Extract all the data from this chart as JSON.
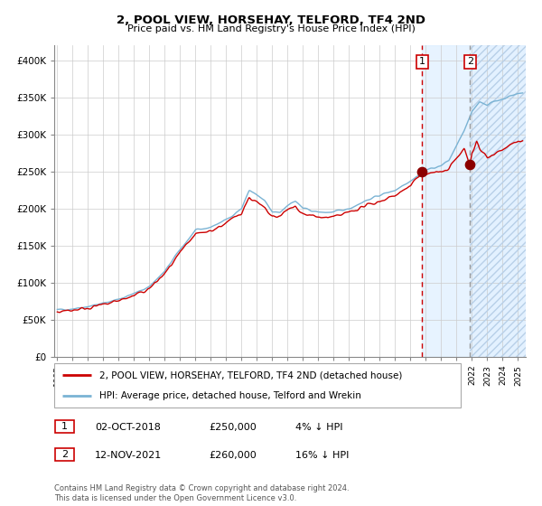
{
  "title": "2, POOL VIEW, HORSEHAY, TELFORD, TF4 2ND",
  "subtitle": "Price paid vs. HM Land Registry's House Price Index (HPI)",
  "legend_line1": "2, POOL VIEW, HORSEHAY, TELFORD, TF4 2ND (detached house)",
  "legend_line2": "HPI: Average price, detached house, Telford and Wrekin",
  "footnote": "Contains HM Land Registry data © Crown copyright and database right 2024.\nThis data is licensed under the Open Government Licence v3.0.",
  "sale1_date": "02-OCT-2018",
  "sale1_price": 250000,
  "sale1_pct": "4%",
  "sale2_date": "12-NOV-2021",
  "sale2_price": 260000,
  "sale2_pct": "16%",
  "hpi_color": "#7ab3d4",
  "price_color": "#cc0000",
  "dot_color": "#8b0000",
  "bg_highlight_color": "#ddeeff",
  "sale1_x": 2018.75,
  "sale2_x": 2021.87,
  "ylim": [
    0,
    420000
  ],
  "xlim_start": 1994.8,
  "xlim_end": 2025.5,
  "hpi_anchors_x": [
    1995.0,
    1996.0,
    1997.0,
    1998.0,
    1999.0,
    2000.0,
    2001.0,
    2002.0,
    2003.0,
    2004.0,
    2005.0,
    2006.0,
    2007.0,
    2007.5,
    2008.0,
    2008.5,
    2009.0,
    2009.5,
    2010.0,
    2010.5,
    2011.0,
    2012.0,
    2013.0,
    2014.0,
    2015.0,
    2016.0,
    2017.0,
    2018.0,
    2018.75,
    2019.0,
    2020.0,
    2020.5,
    2021.0,
    2021.5,
    2022.0,
    2022.5,
    2023.0,
    2023.5,
    2024.0,
    2024.5,
    2025.0,
    2025.3
  ],
  "hpi_anchors_y": [
    63000,
    65000,
    68000,
    72000,
    78000,
    85000,
    95000,
    115000,
    145000,
    170000,
    175000,
    185000,
    200000,
    225000,
    218000,
    210000,
    195000,
    195000,
    205000,
    210000,
    200000,
    195000,
    195000,
    200000,
    210000,
    218000,
    225000,
    238000,
    248000,
    252000,
    258000,
    265000,
    285000,
    305000,
    330000,
    345000,
    340000,
    345000,
    348000,
    352000,
    355000,
    356000
  ],
  "price_anchors_x": [
    1995.0,
    1996.0,
    1997.0,
    1998.0,
    1999.0,
    2000.0,
    2001.0,
    2002.0,
    2003.0,
    2004.0,
    2005.0,
    2006.0,
    2007.0,
    2007.5,
    2008.0,
    2008.5,
    2009.0,
    2009.5,
    2010.0,
    2010.5,
    2011.0,
    2012.0,
    2013.0,
    2014.0,
    2015.0,
    2016.0,
    2017.0,
    2018.0,
    2018.75,
    2019.0,
    2019.5,
    2020.0,
    2020.5,
    2021.0,
    2021.5,
    2021.87,
    2022.0,
    2022.3,
    2022.5,
    2023.0,
    2023.5,
    2024.0,
    2024.5,
    2025.0,
    2025.3
  ],
  "price_anchors_y": [
    61000,
    63000,
    66000,
    70000,
    76000,
    82000,
    92000,
    112000,
    140000,
    165000,
    170000,
    180000,
    195000,
    215000,
    208000,
    200000,
    188000,
    190000,
    198000,
    203000,
    193000,
    188000,
    188000,
    195000,
    203000,
    210000,
    218000,
    230000,
    250000,
    245000,
    250000,
    248000,
    255000,
    268000,
    280000,
    260000,
    275000,
    290000,
    280000,
    270000,
    275000,
    280000,
    285000,
    290000,
    292000
  ],
  "yticks": [
    0,
    50000,
    100000,
    150000,
    200000,
    250000,
    300000,
    350000,
    400000
  ],
  "ylabels": [
    "£0",
    "£50K",
    "£100K",
    "£150K",
    "£200K",
    "£250K",
    "£300K",
    "£350K",
    "£400K"
  ]
}
